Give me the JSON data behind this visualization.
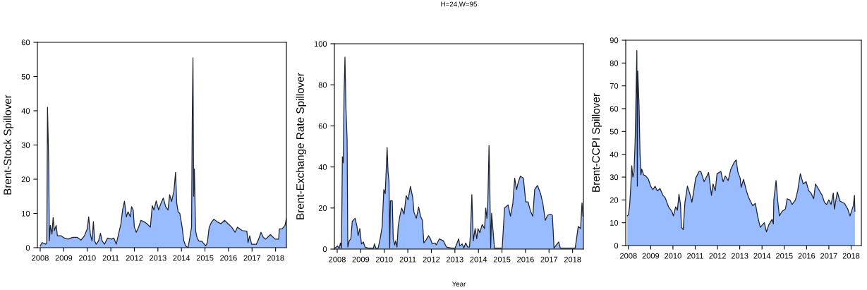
{
  "chart_data": [
    {
      "type": "area",
      "ylabel": "Brent-Stock Spillover",
      "xlim": [
        2007.88,
        2018.46
      ],
      "xticks": [
        2008,
        2009,
        2010,
        2011,
        2012,
        2013,
        2014,
        2015,
        2016,
        2017,
        2018
      ],
      "ylim": [
        0,
        60
      ],
      "yticks": [
        0,
        10,
        20,
        30,
        40,
        50,
        60
      ],
      "grid": false,
      "series": [
        {
          "color": "#99bbff",
          "x": [
            2008.0,
            2008.08,
            2008.23,
            2008.28,
            2008.31,
            2008.36,
            2008.39,
            2008.43,
            2008.5,
            2008.55,
            2008.6,
            2008.68,
            2008.73,
            2008.88,
            2009.03,
            2009.18,
            2009.38,
            2009.58,
            2009.73,
            2009.88,
            2010.0,
            2010.06,
            2010.13,
            2010.2,
            2010.26,
            2010.31,
            2010.38,
            2010.48,
            2010.56,
            2010.63,
            2010.73,
            2010.86,
            2011.03,
            2011.13,
            2011.23,
            2011.33,
            2011.43,
            2011.5,
            2011.58,
            2011.66,
            2011.73,
            2011.83,
            2011.88,
            2011.95,
            2012.0,
            2012.08,
            2012.18,
            2012.28,
            2012.43,
            2012.53,
            2012.68,
            2012.76,
            2012.83,
            2012.93,
            2013.03,
            2013.13,
            2013.23,
            2013.33,
            2013.43,
            2013.5,
            2013.58,
            2013.68,
            2013.75,
            2013.8,
            2013.86,
            2013.93,
            2014.03,
            2014.1,
            2014.18,
            2014.28,
            2014.36,
            2014.43,
            2014.46,
            2014.49,
            2014.52,
            2014.55,
            2014.6,
            2014.66,
            2014.73,
            2014.88,
            2015.03,
            2015.1,
            2015.18,
            2015.28,
            2015.38,
            2015.53,
            2015.68,
            2015.83,
            2015.98,
            2016.13,
            2016.28,
            2016.38,
            2016.58,
            2016.78,
            2016.83,
            2016.9,
            2016.98,
            2017.18,
            2017.28,
            2017.38,
            2017.48,
            2017.58,
            2017.78,
            2017.98,
            2018.13,
            2018.16,
            2018.28,
            2018.4,
            2018.46
          ],
          "values": [
            0.5,
            1.5,
            1.0,
            1.5,
            41,
            25,
            2,
            6.5,
            4,
            8.8,
            5,
            6.5,
            3.5,
            3.5,
            2.8,
            2.5,
            3.0,
            3.0,
            2.2,
            3.5,
            5.5,
            9,
            4,
            2,
            7.6,
            2,
            1,
            2,
            4.2,
            2,
            1,
            2.8,
            2.5,
            2.8,
            1,
            4,
            7,
            11,
            13.6,
            9,
            10.5,
            9,
            12,
            11,
            6,
            4.5,
            6,
            8,
            7.5,
            7,
            6,
            12.3,
            11,
            13.7,
            11,
            13,
            14.5,
            12,
            11,
            15.5,
            13.5,
            16.5,
            22,
            13,
            10.5,
            10,
            6,
            2,
            0.5,
            0,
            3,
            6,
            38,
            55.5,
            15,
            23,
            5,
            3,
            2,
            1.8,
            0.5,
            1.5,
            6,
            7.5,
            8.3,
            7.5,
            7,
            8,
            7,
            6,
            4.5,
            6,
            5,
            4.8,
            1.5,
            3.5,
            1,
            1,
            2.5,
            4.5,
            3,
            2.5,
            3.8,
            2.5,
            2.5,
            5.5,
            5.5,
            6.5,
            8.5
          ]
        }
      ]
    },
    {
      "type": "area",
      "title": "H=24,W=95",
      "xlabel": "Year",
      "ylabel": "Brent-Exchange Rate Spillover",
      "xlim": [
        2007.88,
        2018.46
      ],
      "xticks": [
        2008,
        2009,
        2010,
        2011,
        2012,
        2013,
        2014,
        2015,
        2016,
        2017,
        2018
      ],
      "ylim": [
        0,
        100
      ],
      "yticks": [
        0,
        20,
        40,
        60,
        80,
        100
      ],
      "grid": false,
      "series": [
        {
          "color": "#99bbff",
          "x": [
            2007.91,
            2008.01,
            2008.08,
            2008.14,
            2008.18,
            2008.22,
            2008.26,
            2008.29,
            2008.33,
            2008.37,
            2008.42,
            2008.45,
            2008.51,
            2008.58,
            2008.64,
            2008.76,
            2008.84,
            2008.89,
            2008.96,
            2009.03,
            2009.11,
            2009.18,
            2009.31,
            2009.54,
            2009.58,
            2009.64,
            2009.74,
            2009.84,
            2009.91,
            2009.98,
            2010.04,
            2010.12,
            2010.16,
            2010.2,
            2010.23,
            2010.26,
            2010.34,
            2010.38,
            2010.44,
            2010.48,
            2010.54,
            2010.59,
            2010.66,
            2010.74,
            2010.84,
            2010.93,
            2011.01,
            2011.11,
            2011.21,
            2011.26,
            2011.36,
            2011.46,
            2011.54,
            2011.62,
            2011.68,
            2011.78,
            2011.88,
            2011.96,
            2012.04,
            2012.16,
            2012.21,
            2012.34,
            2012.51,
            2012.64,
            2012.86,
            2013.01,
            2013.16,
            2013.21,
            2013.31,
            2013.38,
            2013.46,
            2013.54,
            2013.62,
            2013.66,
            2013.72,
            2013.78,
            2013.86,
            2013.93,
            2013.98,
            2014.06,
            2014.16,
            2014.26,
            2014.31,
            2014.36,
            2014.4,
            2014.45,
            2014.48,
            2014.52,
            2014.56,
            2014.62,
            2014.68,
            2015.01,
            2015.11,
            2015.26,
            2015.36,
            2015.46,
            2015.54,
            2015.62,
            2015.68,
            2015.78,
            2015.91,
            2016.01,
            2016.11,
            2016.21,
            2016.31,
            2016.39,
            2016.51,
            2016.64,
            2016.74,
            2016.84,
            2016.94,
            2017.06,
            2017.14,
            2017.18,
            2017.21,
            2017.41,
            2017.48,
            2017.66,
            2018.11,
            2018.18,
            2018.24,
            2018.34,
            2018.4,
            2018.44
          ],
          "values": [
            0.5,
            1.5,
            0.5,
            3,
            0.5,
            45,
            42,
            75,
            93.5,
            69,
            54,
            1,
            4,
            5,
            13.5,
            15,
            11,
            6.5,
            10,
            2.5,
            3.5,
            1,
            0.5,
            0.5,
            2.5,
            0.5,
            0.5,
            6,
            11,
            29,
            27,
            49.5,
            37.5,
            33,
            0.5,
            23.5,
            23.5,
            5,
            2,
            4,
            1,
            11,
            16,
            20,
            17,
            26,
            24,
            30.5,
            25,
            18,
            15,
            20.5,
            16,
            14,
            3,
            4.5,
            6.5,
            5,
            2.5,
            3,
            2,
            5,
            4,
            1,
            0.5,
            0.5,
            5,
            1.5,
            2.5,
            0.5,
            3,
            1,
            1,
            7,
            26.5,
            4,
            10,
            5,
            10,
            8,
            12,
            10,
            20,
            15,
            23,
            50.5,
            33,
            0.5,
            17.5,
            9,
            0.5,
            0.5,
            20,
            21.5,
            16,
            22,
            34.5,
            29,
            32,
            35.5,
            34.5,
            23,
            23,
            18.5,
            16,
            29,
            31,
            27,
            22,
            14,
            16.5,
            17,
            16.5,
            8,
            0.5,
            3.5,
            0.5,
            0.5,
            0.5,
            6,
            11,
            10,
            22.5,
            16
          ]
        }
      ]
    },
    {
      "type": "area",
      "ylabel": "Brent-CCPI Spillover",
      "xlim": [
        2007.88,
        2018.46
      ],
      "xticks": [
        2008,
        2009,
        2010,
        2011,
        2012,
        2013,
        2014,
        2015,
        2016,
        2017,
        2018
      ],
      "ylim": [
        0,
        90
      ],
      "yticks": [
        0,
        10,
        20,
        30,
        40,
        50,
        60,
        70,
        80,
        90
      ],
      "grid": false,
      "series": [
        {
          "color": "#99bbff",
          "x": [
            2007.95,
            2008.0,
            2008.05,
            2008.1,
            2008.15,
            2008.2,
            2008.25,
            2008.3,
            2008.34,
            2008.38,
            2008.4,
            2008.42,
            2008.48,
            2008.52,
            2008.56,
            2008.6,
            2008.68,
            2008.78,
            2008.9,
            2009.0,
            2009.1,
            2009.2,
            2009.3,
            2009.42,
            2009.55,
            2009.65,
            2009.8,
            2009.95,
            2010.02,
            2010.12,
            2010.2,
            2010.27,
            2010.34,
            2010.38,
            2010.46,
            2010.54,
            2010.65,
            2010.75,
            2010.85,
            2010.92,
            2011.02,
            2011.17,
            2011.25,
            2011.4,
            2011.6,
            2011.73,
            2011.8,
            2011.9,
            2011.98,
            2012.15,
            2012.25,
            2012.35,
            2012.48,
            2012.6,
            2012.75,
            2012.84,
            2012.92,
            2013.02,
            2013.06,
            2013.17,
            2013.3,
            2013.4,
            2013.5,
            2013.58,
            2013.7,
            2013.8,
            2013.92,
            2014.1,
            2014.2,
            2014.3,
            2014.45,
            2014.51,
            2014.53,
            2014.63,
            2014.7,
            2014.78,
            2014.9,
            2015.05,
            2015.13,
            2015.25,
            2015.35,
            2015.5,
            2015.6,
            2015.72,
            2015.85,
            2015.98,
            2016.1,
            2016.2,
            2016.32,
            2016.4,
            2016.55,
            2016.7,
            2016.8,
            2016.9,
            2017.0,
            2017.1,
            2017.2,
            2017.25,
            2017.38,
            2017.5,
            2017.7,
            2017.85,
            2017.95,
            2018.1,
            2018.15,
            2018.17
          ],
          "values": [
            13,
            13.5,
            17,
            24.5,
            35,
            30,
            32,
            45,
            65,
            85.5,
            26,
            76.5,
            61,
            40.5,
            31,
            33.5,
            31,
            30.5,
            29,
            26,
            24.5,
            26,
            24,
            25,
            22,
            21,
            17,
            15,
            13,
            17,
            15.5,
            22.5,
            18,
            8,
            7,
            19,
            26,
            23,
            19,
            23,
            29.5,
            32.5,
            32.5,
            28,
            32,
            22,
            27,
            24,
            31.5,
            32.5,
            28,
            30.5,
            28.5,
            33.5,
            36.5,
            37.5,
            32,
            29.5,
            25.5,
            29,
            24,
            21,
            19,
            17.5,
            18.5,
            13,
            8,
            10,
            6,
            9,
            11.5,
            9.5,
            20,
            28.5,
            20,
            13,
            15,
            16,
            20.5,
            20,
            18,
            20,
            24,
            31.5,
            27,
            28,
            24,
            23,
            20.5,
            27,
            24.5,
            22,
            19,
            18,
            20,
            18,
            23,
            16,
            23.5,
            19.5,
            18.5,
            16,
            13,
            17.5,
            22,
            15
          ]
        }
      ]
    }
  ]
}
